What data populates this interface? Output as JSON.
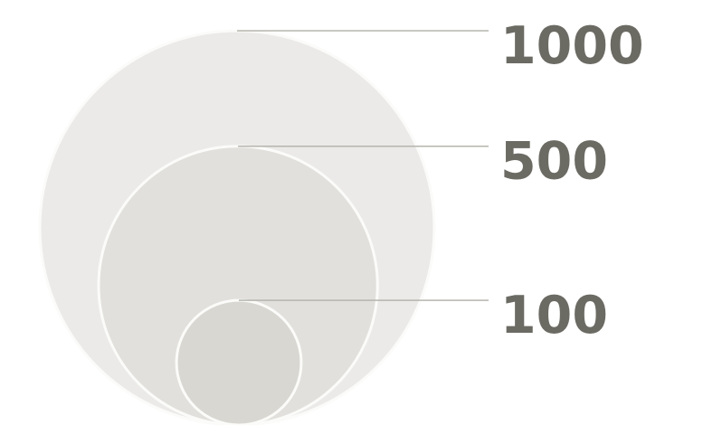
{
  "chart_data": {
    "type": "bubble-size-legend",
    "title": "",
    "values": [
      1000,
      500,
      100
    ],
    "labels": [
      "1000",
      "500",
      "100"
    ],
    "colors": [
      "#ebeae8",
      "#e2e0dc",
      "#d9d7d2"
    ],
    "label_color": "#6b6a63",
    "leader_color": "#b6b5ae",
    "outline_color": "#fbfbf9"
  }
}
